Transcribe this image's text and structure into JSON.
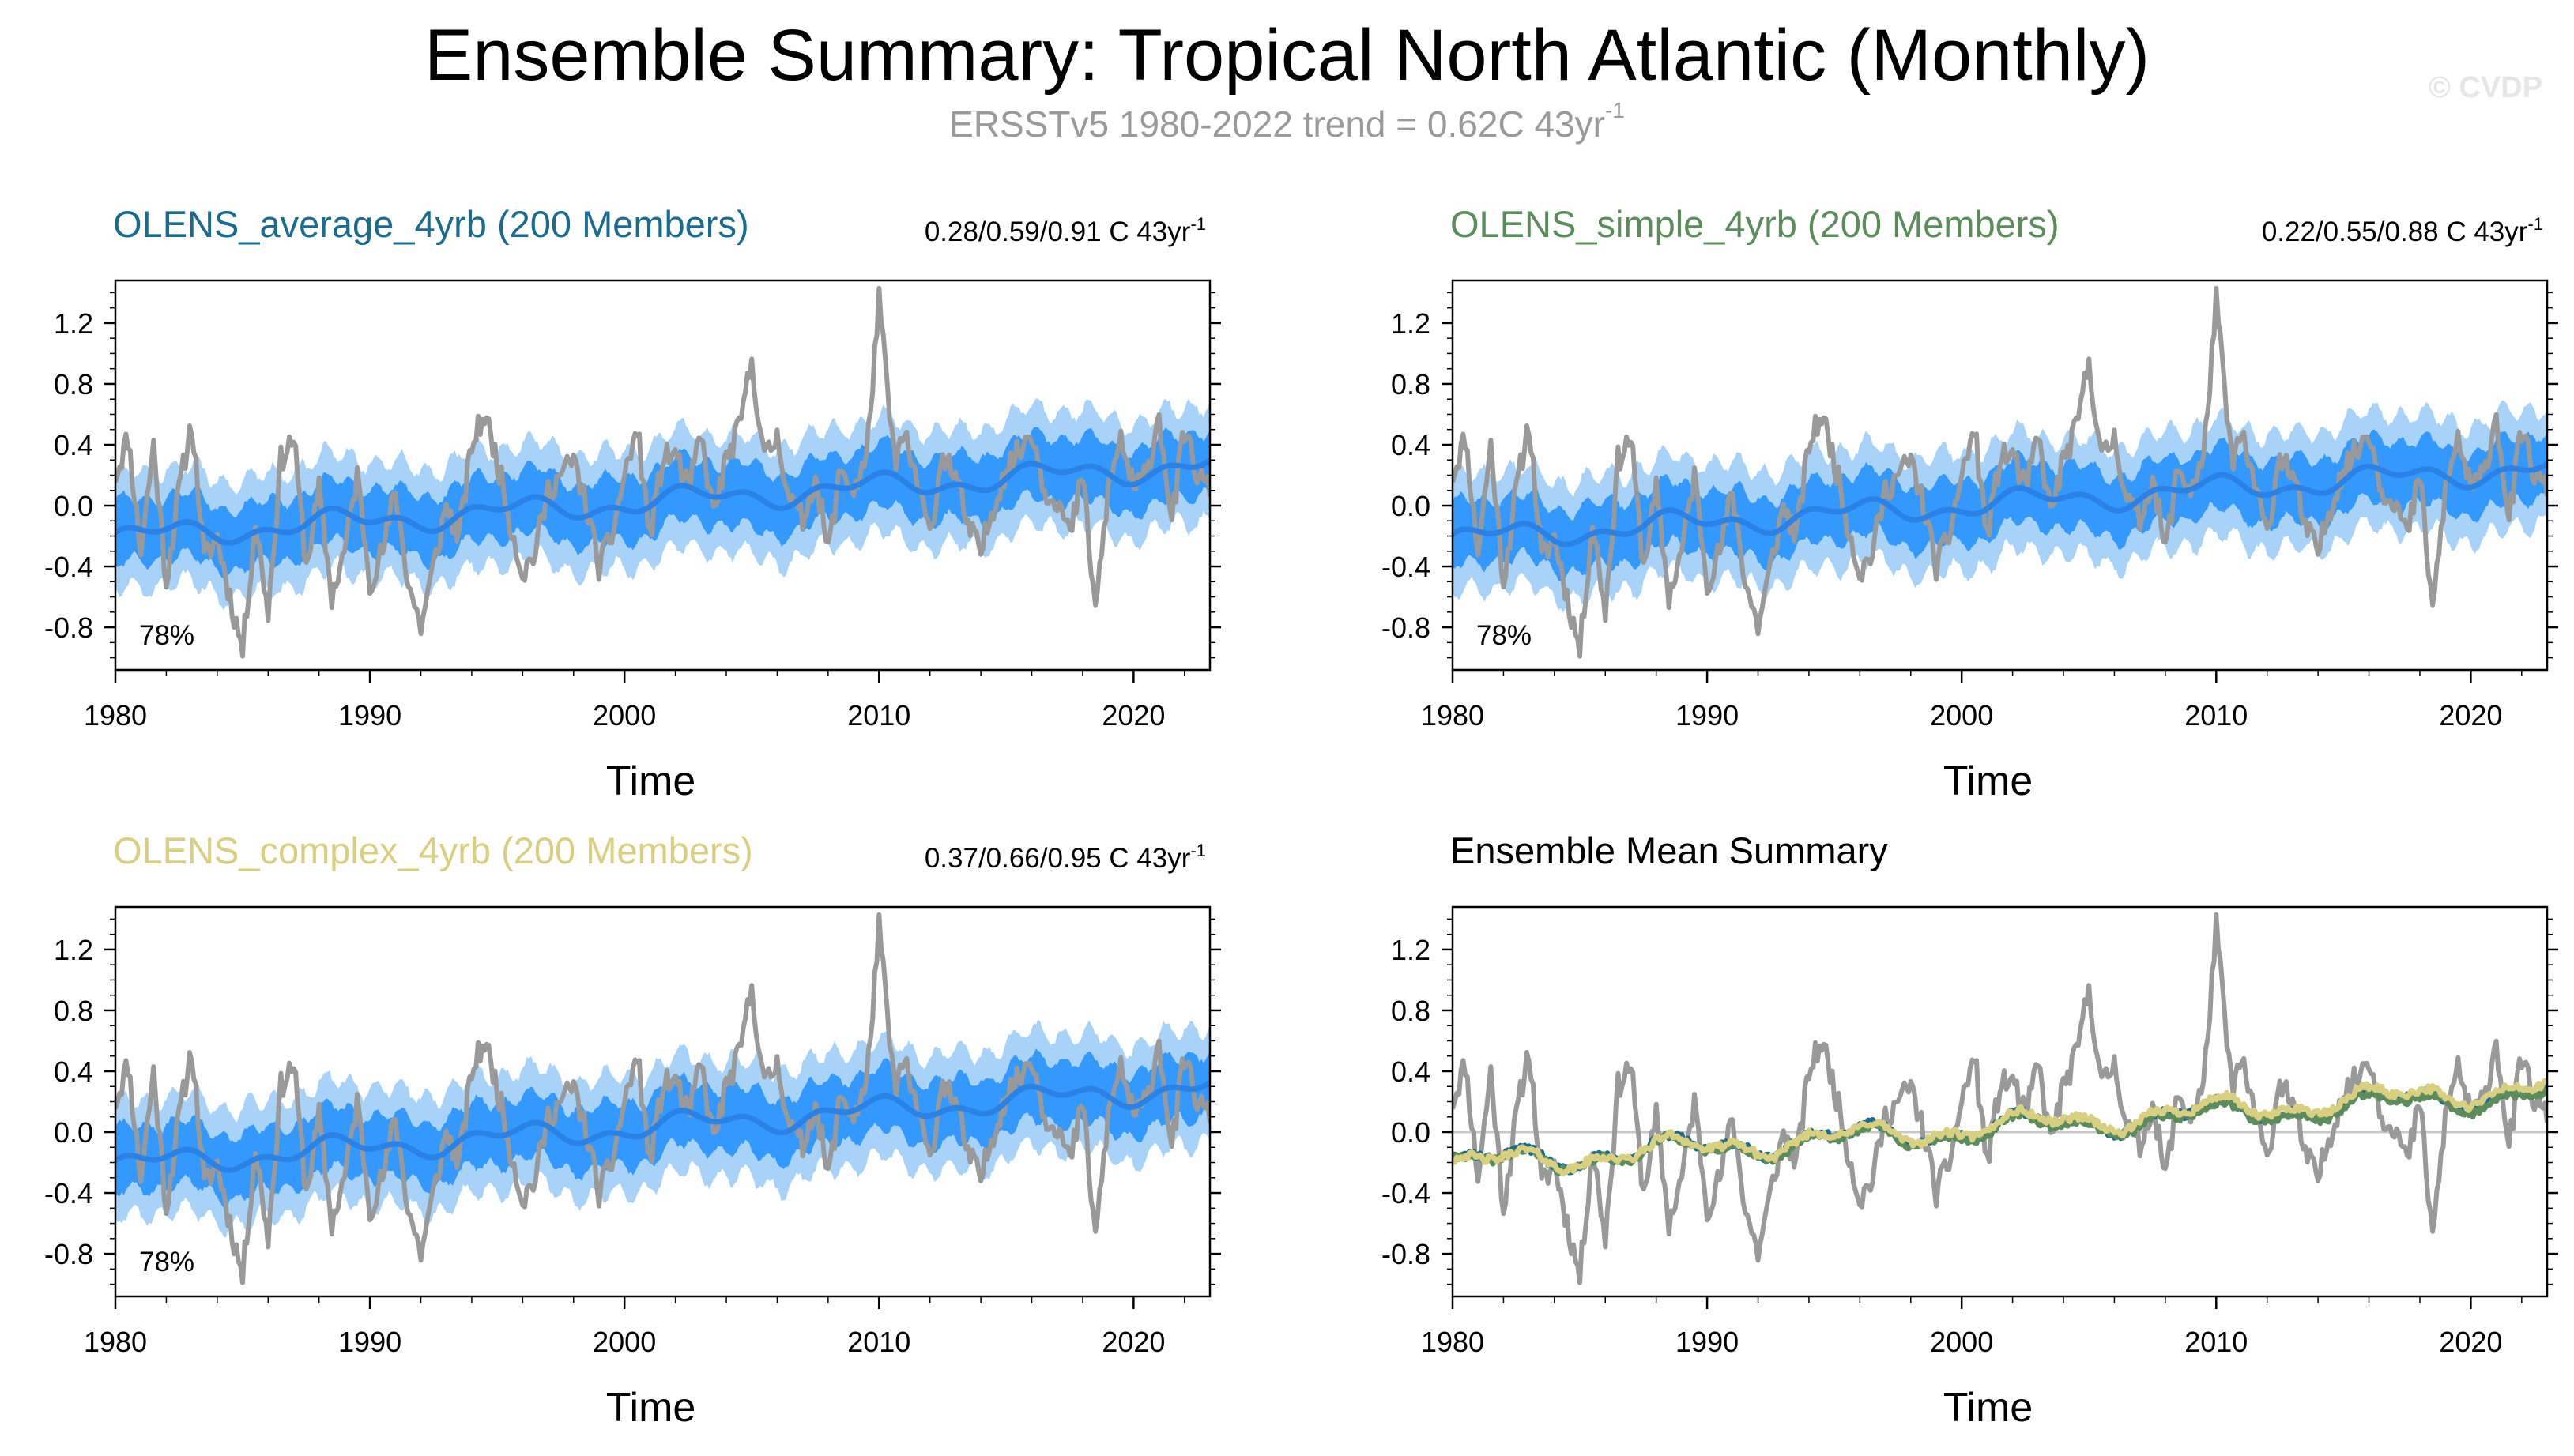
{
  "header": {
    "title": "Ensemble Summary: Tropical North Atlantic (Monthly)",
    "subtitle_main": "ERSSTv5 1980-2022 trend = 0.62C 43yr",
    "subtitle_sup": "-1",
    "watermark": "© CVDP"
  },
  "colors": {
    "obs": "#999999",
    "band_outer": "#a8d2f8",
    "band_inner": "#3399ff",
    "ens_mean": "#2b82e6",
    "average": "#1a6b8f",
    "simple": "#5c8c5c",
    "complex": "#d8d080",
    "axis": "#000000",
    "zero_line": "#c8c8c8"
  },
  "chart_data": [
    {
      "type": "line",
      "title": "OLENS_average_4yrb (200 Members)",
      "title_color": "#1a6b8f",
      "trend_label": "0.28/0.59/0.91 C 43yr",
      "trend_sup": "-1",
      "pct_label": "78%",
      "xlabel": "Time",
      "ylabel": "",
      "xlim": [
        1980,
        2023
      ],
      "ylim": [
        -1.08,
        1.48
      ],
      "xticks": [
        1980,
        1990,
        2000,
        2010,
        2020
      ],
      "yticks": [
        -0.8,
        -0.4,
        0.0,
        0.4,
        0.8,
        1.2
      ],
      "ytick_labels": [
        "-0.8",
        "-0.4",
        "0.0",
        "0.4",
        "0.8",
        "1.2"
      ],
      "series_kind": "ensemble",
      "ens_start": -0.21,
      "ens_end": 0.27,
      "obs_seed": 11
    },
    {
      "type": "line",
      "title": "OLENS_simple_4yrb (200 Members)",
      "title_color": "#5c8c5c",
      "trend_label": "0.22/0.55/0.88 C 43yr",
      "trend_sup": "-1",
      "pct_label": "78%",
      "xlabel": "Time",
      "ylabel": "",
      "xlim": [
        1980,
        2023
      ],
      "ylim": [
        -1.08,
        1.48
      ],
      "xticks": [
        1980,
        1990,
        2000,
        2010,
        2020
      ],
      "yticks": [
        -0.8,
        -0.4,
        0.0,
        0.4,
        0.8,
        1.2
      ],
      "ytick_labels": [
        "-0.8",
        "-0.4",
        "0.0",
        "0.4",
        "0.8",
        "1.2"
      ],
      "series_kind": "ensemble",
      "ens_start": -0.22,
      "ens_end": 0.25,
      "obs_seed": 11
    },
    {
      "type": "line",
      "title": "OLENS_complex_4yrb (200 Members)",
      "title_color": "#d8d080",
      "trend_label": "0.37/0.66/0.95 C 43yr",
      "trend_sup": "-1",
      "pct_label": "78%",
      "xlabel": "Time",
      "ylabel": "",
      "xlim": [
        1980,
        2023
      ],
      "ylim": [
        -1.08,
        1.48
      ],
      "xticks": [
        1980,
        1990,
        2000,
        2010,
        2020
      ],
      "yticks": [
        -0.8,
        -0.4,
        0.0,
        0.4,
        0.8,
        1.2
      ],
      "ytick_labels": [
        "-0.8",
        "-0.4",
        "0.0",
        "0.4",
        "0.8",
        "1.2"
      ],
      "series_kind": "ensemble",
      "ens_start": -0.22,
      "ens_end": 0.3,
      "obs_seed": 11
    },
    {
      "type": "line",
      "title": "Ensemble Mean Summary",
      "title_color": "#000000",
      "trend_label": "",
      "trend_sup": "",
      "pct_label": "",
      "xlabel": "Time",
      "ylabel": "",
      "xlim": [
        1980,
        2023
      ],
      "ylim": [
        -1.08,
        1.48
      ],
      "xticks": [
        1980,
        1990,
        2000,
        2010,
        2020
      ],
      "yticks": [
        -0.8,
        -0.4,
        0.0,
        0.4,
        0.8,
        1.2
      ],
      "ytick_labels": [
        "-0.8",
        "-0.4",
        "0.0",
        "0.4",
        "0.8",
        "1.2"
      ],
      "series_kind": "summary",
      "ens_start": -0.22,
      "ens_end": 0.27,
      "obs_seed": 11
    }
  ],
  "obs_anchor_points": {
    "x": [
      1980.0,
      1980.5,
      1981.0,
      1981.5,
      1982.0,
      1982.5,
      1983.0,
      1983.5,
      1984.0,
      1984.5,
      1985.0,
      1985.5,
      1986.0,
      1986.5,
      1987.0,
      1987.5,
      1988.0,
      1988.5,
      1989.0,
      1989.5,
      1990.0,
      1990.5,
      1991.0,
      1991.5,
      1992.0,
      1992.5,
      1993.0,
      1993.5,
      1994.0,
      1994.5,
      1995.0,
      1995.5,
      1996.0,
      1996.5,
      1997.0,
      1997.5,
      1998.0,
      1998.5,
      1999.0,
      1999.5,
      2000.0,
      2000.5,
      2001.0,
      2001.5,
      2002.0,
      2002.5,
      2003.0,
      2003.5,
      2004.0,
      2004.5,
      2005.0,
      2005.5,
      2006.0,
      2006.5,
      2007.0,
      2007.5,
      2008.0,
      2008.5,
      2009.0,
      2009.5,
      2010.0,
      2010.3,
      2010.6,
      2011.0,
      2011.5,
      2012.0,
      2012.5,
      2013.0,
      2013.5,
      2014.0,
      2014.5,
      2015.0,
      2015.5,
      2016.0,
      2016.5,
      2017.0,
      2017.5,
      2018.0,
      2018.5,
      2019.0,
      2019.5,
      2020.0,
      2020.5,
      2021.0,
      2021.5,
      2022.0,
      2022.5,
      2023.0
    ],
    "y": [
      0.2,
      0.45,
      -0.3,
      0.4,
      -0.5,
      0.1,
      0.55,
      -0.35,
      -0.2,
      -0.6,
      -0.95,
      -0.1,
      -0.7,
      0.3,
      0.45,
      -0.4,
      0.1,
      -0.6,
      -0.3,
      0.2,
      -0.5,
      -0.3,
      0.1,
      -0.5,
      -0.8,
      -0.4,
      0.0,
      -0.2,
      0.4,
      0.6,
      0.3,
      -0.1,
      -0.45,
      -0.3,
      0.1,
      0.2,
      0.3,
      0.0,
      -0.4,
      -0.2,
      0.2,
      0.5,
      -0.2,
      0.3,
      0.35,
      0.1,
      0.45,
      -0.05,
      0.3,
      0.5,
      0.95,
      0.3,
      0.45,
      0.05,
      -0.1,
      0.2,
      -0.3,
      0.25,
      0.1,
      0.3,
      1.35,
      0.8,
      0.3,
      0.45,
      0.15,
      -0.2,
      0.35,
      0.2,
      -0.15,
      -0.3,
      0.0,
      0.25,
      0.35,
      0.5,
      0.1,
      0.05,
      -0.2,
      0.2,
      -0.7,
      0.1,
      0.45,
      0.1,
      0.2,
      0.6,
      -0.1,
      0.5,
      0.2,
      0.1
    ]
  }
}
